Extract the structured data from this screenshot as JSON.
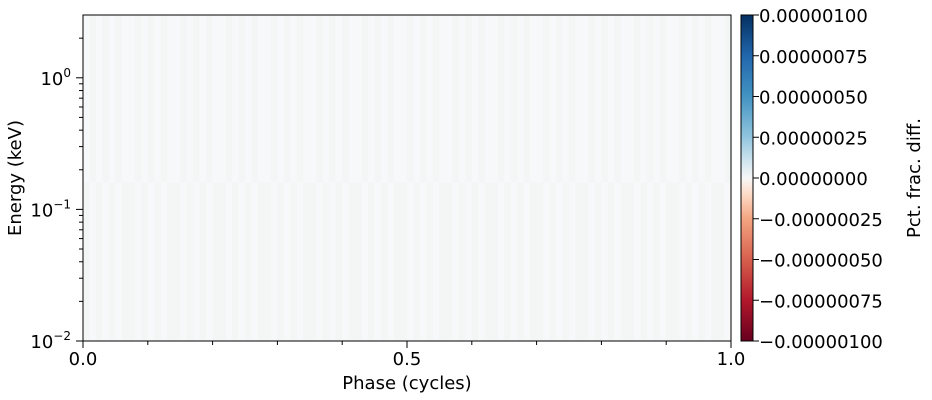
{
  "chart_data": {
    "type": "heatmap",
    "xlabel": "Phase (cycles)",
    "ylabel": "Energy (keV)",
    "x_range": [
      0.0,
      1.0
    ],
    "x_ticks": [
      {
        "value": 0.0,
        "label": "0.0"
      },
      {
        "value": 0.5,
        "label": "0.5"
      },
      {
        "value": 1.0,
        "label": "1.0"
      }
    ],
    "x_minor_ticks": [
      0.1,
      0.2,
      0.3,
      0.4,
      0.6,
      0.7,
      0.8,
      0.9
    ],
    "y_scale": "log",
    "y_range": [
      0.01,
      3.0
    ],
    "y_ticks": [
      {
        "value": 0.01,
        "base": "10",
        "exp": "−2"
      },
      {
        "value": 0.1,
        "base": "10",
        "exp": "−1"
      },
      {
        "value": 1.0,
        "base": "10",
        "exp": "0"
      }
    ],
    "colorbar": {
      "label": "Pct. frac. diff.",
      "colormap": "RdBu",
      "range": [
        -1e-06,
        1e-06
      ],
      "ticks": [
        {
          "value": 1e-06,
          "label": "0.00000100"
        },
        {
          "value": 7.5e-07,
          "label": "0.00000075"
        },
        {
          "value": 5e-07,
          "label": "0.00000050"
        },
        {
          "value": 2.5e-07,
          "label": "0.00000025"
        },
        {
          "value": 0.0,
          "label": "0.00000000"
        },
        {
          "value": -2.5e-07,
          "label": "−0.00000025"
        },
        {
          "value": -5e-07,
          "label": "−0.00000050"
        },
        {
          "value": -7.5e-07,
          "label": "−0.00000075"
        },
        {
          "value": -1e-06,
          "label": "−0.00000100"
        }
      ]
    },
    "heatmap_value": 0.0,
    "phase_bins": 100,
    "energy_break_keV": 0.16,
    "cell_colors": [
      "#f7f8f9",
      "#f4f6f6"
    ]
  }
}
